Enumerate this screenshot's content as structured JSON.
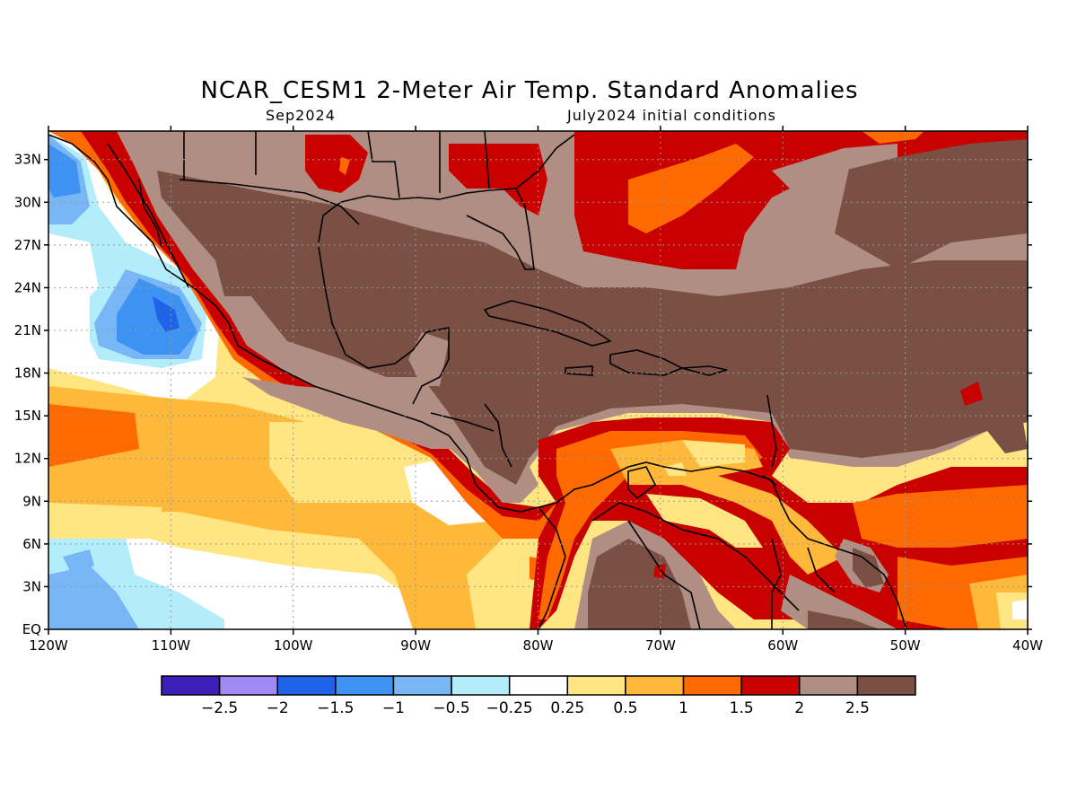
{
  "header": {
    "title": "NCAR_CESM1 2-Meter Air Temp. Standard Anomalies",
    "valid_month": "Sep2024",
    "init": "July2024 initial conditions"
  },
  "map": {
    "lon_range": [
      -120,
      -40
    ],
    "lat_range": [
      0,
      35
    ],
    "lat_ticks": [
      {
        "value": 33,
        "label": "33N"
      },
      {
        "value": 30,
        "label": "30N"
      },
      {
        "value": 27,
        "label": "27N"
      },
      {
        "value": 24,
        "label": "24N"
      },
      {
        "value": 21,
        "label": "21N"
      },
      {
        "value": 18,
        "label": "18N"
      },
      {
        "value": 15,
        "label": "15N"
      },
      {
        "value": 12,
        "label": "12N"
      },
      {
        "value": 9,
        "label": "9N"
      },
      {
        "value": 6,
        "label": "6N"
      },
      {
        "value": 3,
        "label": "3N"
      },
      {
        "value": 0,
        "label": "EQ"
      }
    ],
    "lon_ticks": [
      {
        "value": -120,
        "label": "120W"
      },
      {
        "value": -110,
        "label": "110W"
      },
      {
        "value": -100,
        "label": "100W"
      },
      {
        "value": -90,
        "label": "90W"
      },
      {
        "value": -80,
        "label": "80W"
      },
      {
        "value": -70,
        "label": "70W"
      },
      {
        "value": -60,
        "label": "60W"
      },
      {
        "value": -50,
        "label": "50W"
      },
      {
        "value": -40,
        "label": "40W"
      }
    ]
  },
  "colorbar": {
    "colors": [
      "#3b1fb8",
      "#9e8af2",
      "#1f63e8",
      "#3e93f2",
      "#78b6f5",
      "#b3ecfa",
      "#ffffff",
      "#ffe682",
      "#ffb93a",
      "#ff6a00",
      "#c80000",
      "#b08e84",
      "#7a4f44"
    ],
    "labels": [
      "-2.5",
      "-2",
      "-1.5",
      "-1",
      "-0.5",
      "-0.25",
      "0.25",
      "0.5",
      "1",
      "1.5",
      "2",
      "2.5"
    ]
  }
}
